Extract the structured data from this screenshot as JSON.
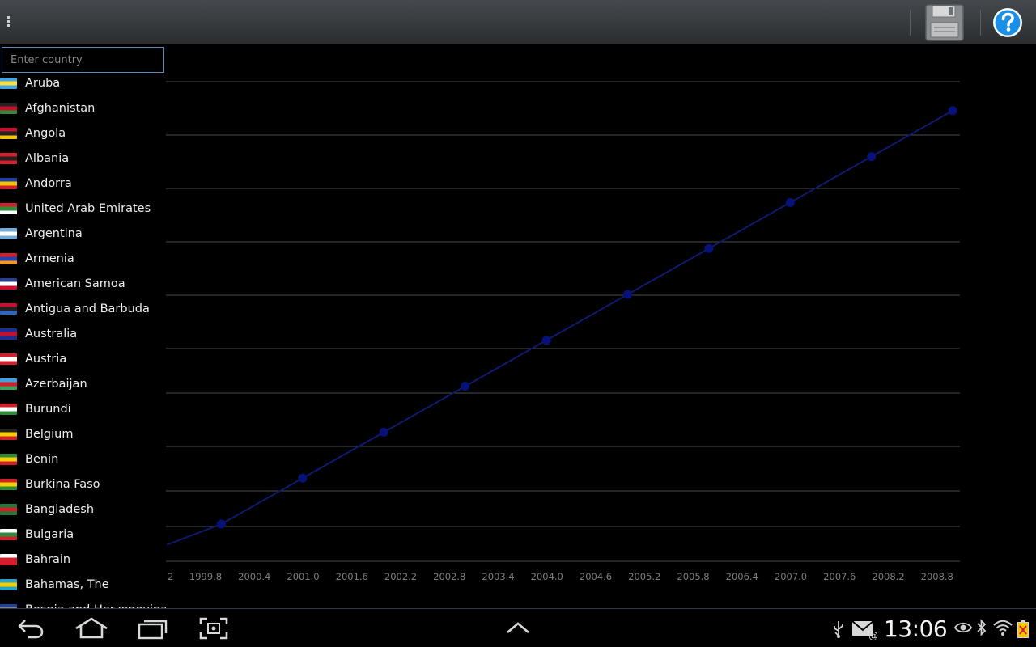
{
  "search": {
    "placeholder": "Enter country",
    "value": ""
  },
  "countries": [
    {
      "name": "Aruba",
      "flag": [
        "#4aa3df",
        "#f5e142",
        "#4aa3df"
      ]
    },
    {
      "name": "Afghanistan",
      "flag": [
        "#222222",
        "#c8102e",
        "#2e8b3a"
      ]
    },
    {
      "name": "Angola",
      "flag": [
        "#c8102e",
        "#222222",
        "#f5c400"
      ]
    },
    {
      "name": "Albania",
      "flag": [
        "#d21f2b",
        "#222222",
        "#d21f2b"
      ]
    },
    {
      "name": "Andorra",
      "flag": [
        "#1f3fa6",
        "#f5c400",
        "#d21f2b"
      ]
    },
    {
      "name": "United Arab Emirates",
      "flag": [
        "#d21f2b",
        "#2e8b3a",
        "#ffffff"
      ]
    },
    {
      "name": "Argentina",
      "flag": [
        "#75aadb",
        "#ffffff",
        "#75aadb"
      ]
    },
    {
      "name": "Armenia",
      "flag": [
        "#d21f2b",
        "#2a3fa8",
        "#f29a1f"
      ]
    },
    {
      "name": "American Samoa",
      "flag": [
        "#2a3f8f",
        "#ffffff",
        "#c8102e"
      ]
    },
    {
      "name": "Antigua and Barbuda",
      "flag": [
        "#c8102e",
        "#222222",
        "#2a65c8"
      ]
    },
    {
      "name": "Australia",
      "flag": [
        "#1f2f8f",
        "#c8102e",
        "#1f2f8f"
      ]
    },
    {
      "name": "Austria",
      "flag": [
        "#d21f2b",
        "#ffffff",
        "#d21f2b"
      ]
    },
    {
      "name": "Azerbaijan",
      "flag": [
        "#3fa3df",
        "#d21f2b",
        "#3fa35a"
      ]
    },
    {
      "name": "Burundi",
      "flag": [
        "#d21f2b",
        "#ffffff",
        "#2e8b3a"
      ]
    },
    {
      "name": "Belgium",
      "flag": [
        "#222222",
        "#f5d000",
        "#d21f2b"
      ]
    },
    {
      "name": "Benin",
      "flag": [
        "#2e8b3a",
        "#f5d000",
        "#d21f2b"
      ]
    },
    {
      "name": "Burkina Faso",
      "flag": [
        "#d21f2b",
        "#f5d000",
        "#2e8b3a"
      ]
    },
    {
      "name": "Bangladesh",
      "flag": [
        "#1f7a3a",
        "#d21f2b",
        "#1f7a3a"
      ]
    },
    {
      "name": "Bulgaria",
      "flag": [
        "#ffffff",
        "#2e8b3a",
        "#d21f2b"
      ]
    },
    {
      "name": "Bahrain",
      "flag": [
        "#ffffff",
        "#d21f2b",
        "#d21f2b"
      ]
    },
    {
      "name": "Bahamas, The",
      "flag": [
        "#2aa3c8",
        "#f5d000",
        "#2aa3c8"
      ]
    },
    {
      "name": "Bosnia and Herzegovina",
      "flag": [
        "#1f3fa6",
        "#f5d000",
        "#1f3fa6"
      ]
    }
  ],
  "chart_data": {
    "type": "line",
    "x": [
      2000.0,
      2001.0,
      2002.0,
      2003.0,
      2004.0,
      2005.0,
      2006.0,
      2007.0,
      2008.0,
      2009.0
    ],
    "series": [
      {
        "values": [
          1,
          2,
          3,
          4,
          5,
          6,
          7,
          8,
          9,
          10
        ]
      }
    ],
    "x_tick_labels": [
      "2",
      "1999.8",
      "2000.4",
      "2001.0",
      "2001.6",
      "2002.2",
      "2002.8",
      "2003.4",
      "2004.0",
      "2004.6",
      "2005.2",
      "2005.8",
      "2006.4",
      "2007.0",
      "2007.6",
      "2008.2",
      "2008.8"
    ],
    "grid": true,
    "line_color": "#0d1a6e",
    "marker_color": "#07117a"
  },
  "status": {
    "clock": "13:06"
  },
  "colors": {
    "accent": "#33b5e5",
    "help": "#1a8fe8"
  },
  "icons": [
    "overflow-menu-icon",
    "save-icon",
    "help-icon",
    "back-icon",
    "home-icon",
    "recent-apps-icon",
    "screenshot-icon",
    "up-arrow-icon",
    "usb-icon",
    "email-icon",
    "eye-icon",
    "bluetooth-icon",
    "wifi-icon",
    "battery-icon"
  ]
}
